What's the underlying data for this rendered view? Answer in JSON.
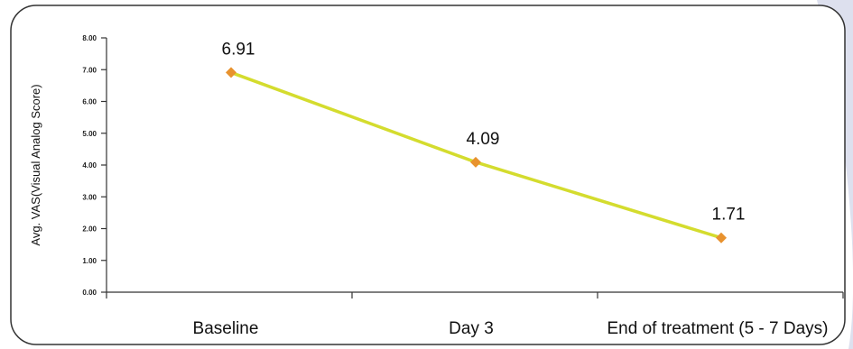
{
  "colors": {
    "line": "#d4dc2e",
    "marker": "#e8922e",
    "axis": "#333333",
    "frame": "#333333",
    "blob": "#dde0ee"
  },
  "chart_data": {
    "type": "line",
    "title": "",
    "xlabel": "",
    "ylabel": "Avg. VAS(Visual Analog Score)",
    "categories": [
      "Baseline",
      "Day 3",
      "End of treatment (5 - 7 Days)"
    ],
    "series": [
      {
        "values": [
          6.91,
          4.09,
          1.71
        ],
        "data_labels": [
          "6.91",
          "4.09",
          "1.71"
        ]
      }
    ],
    "ylim": [
      0,
      8
    ],
    "yticks": [
      0,
      1,
      2,
      3,
      4,
      5,
      6,
      7,
      8
    ],
    "ytick_labels": [
      "0.00",
      "1.00",
      "2.00",
      "3.00",
      "4.00",
      "5.00",
      "6.00",
      "7.00",
      "8.00"
    ],
    "grid": false,
    "legend": "none"
  }
}
